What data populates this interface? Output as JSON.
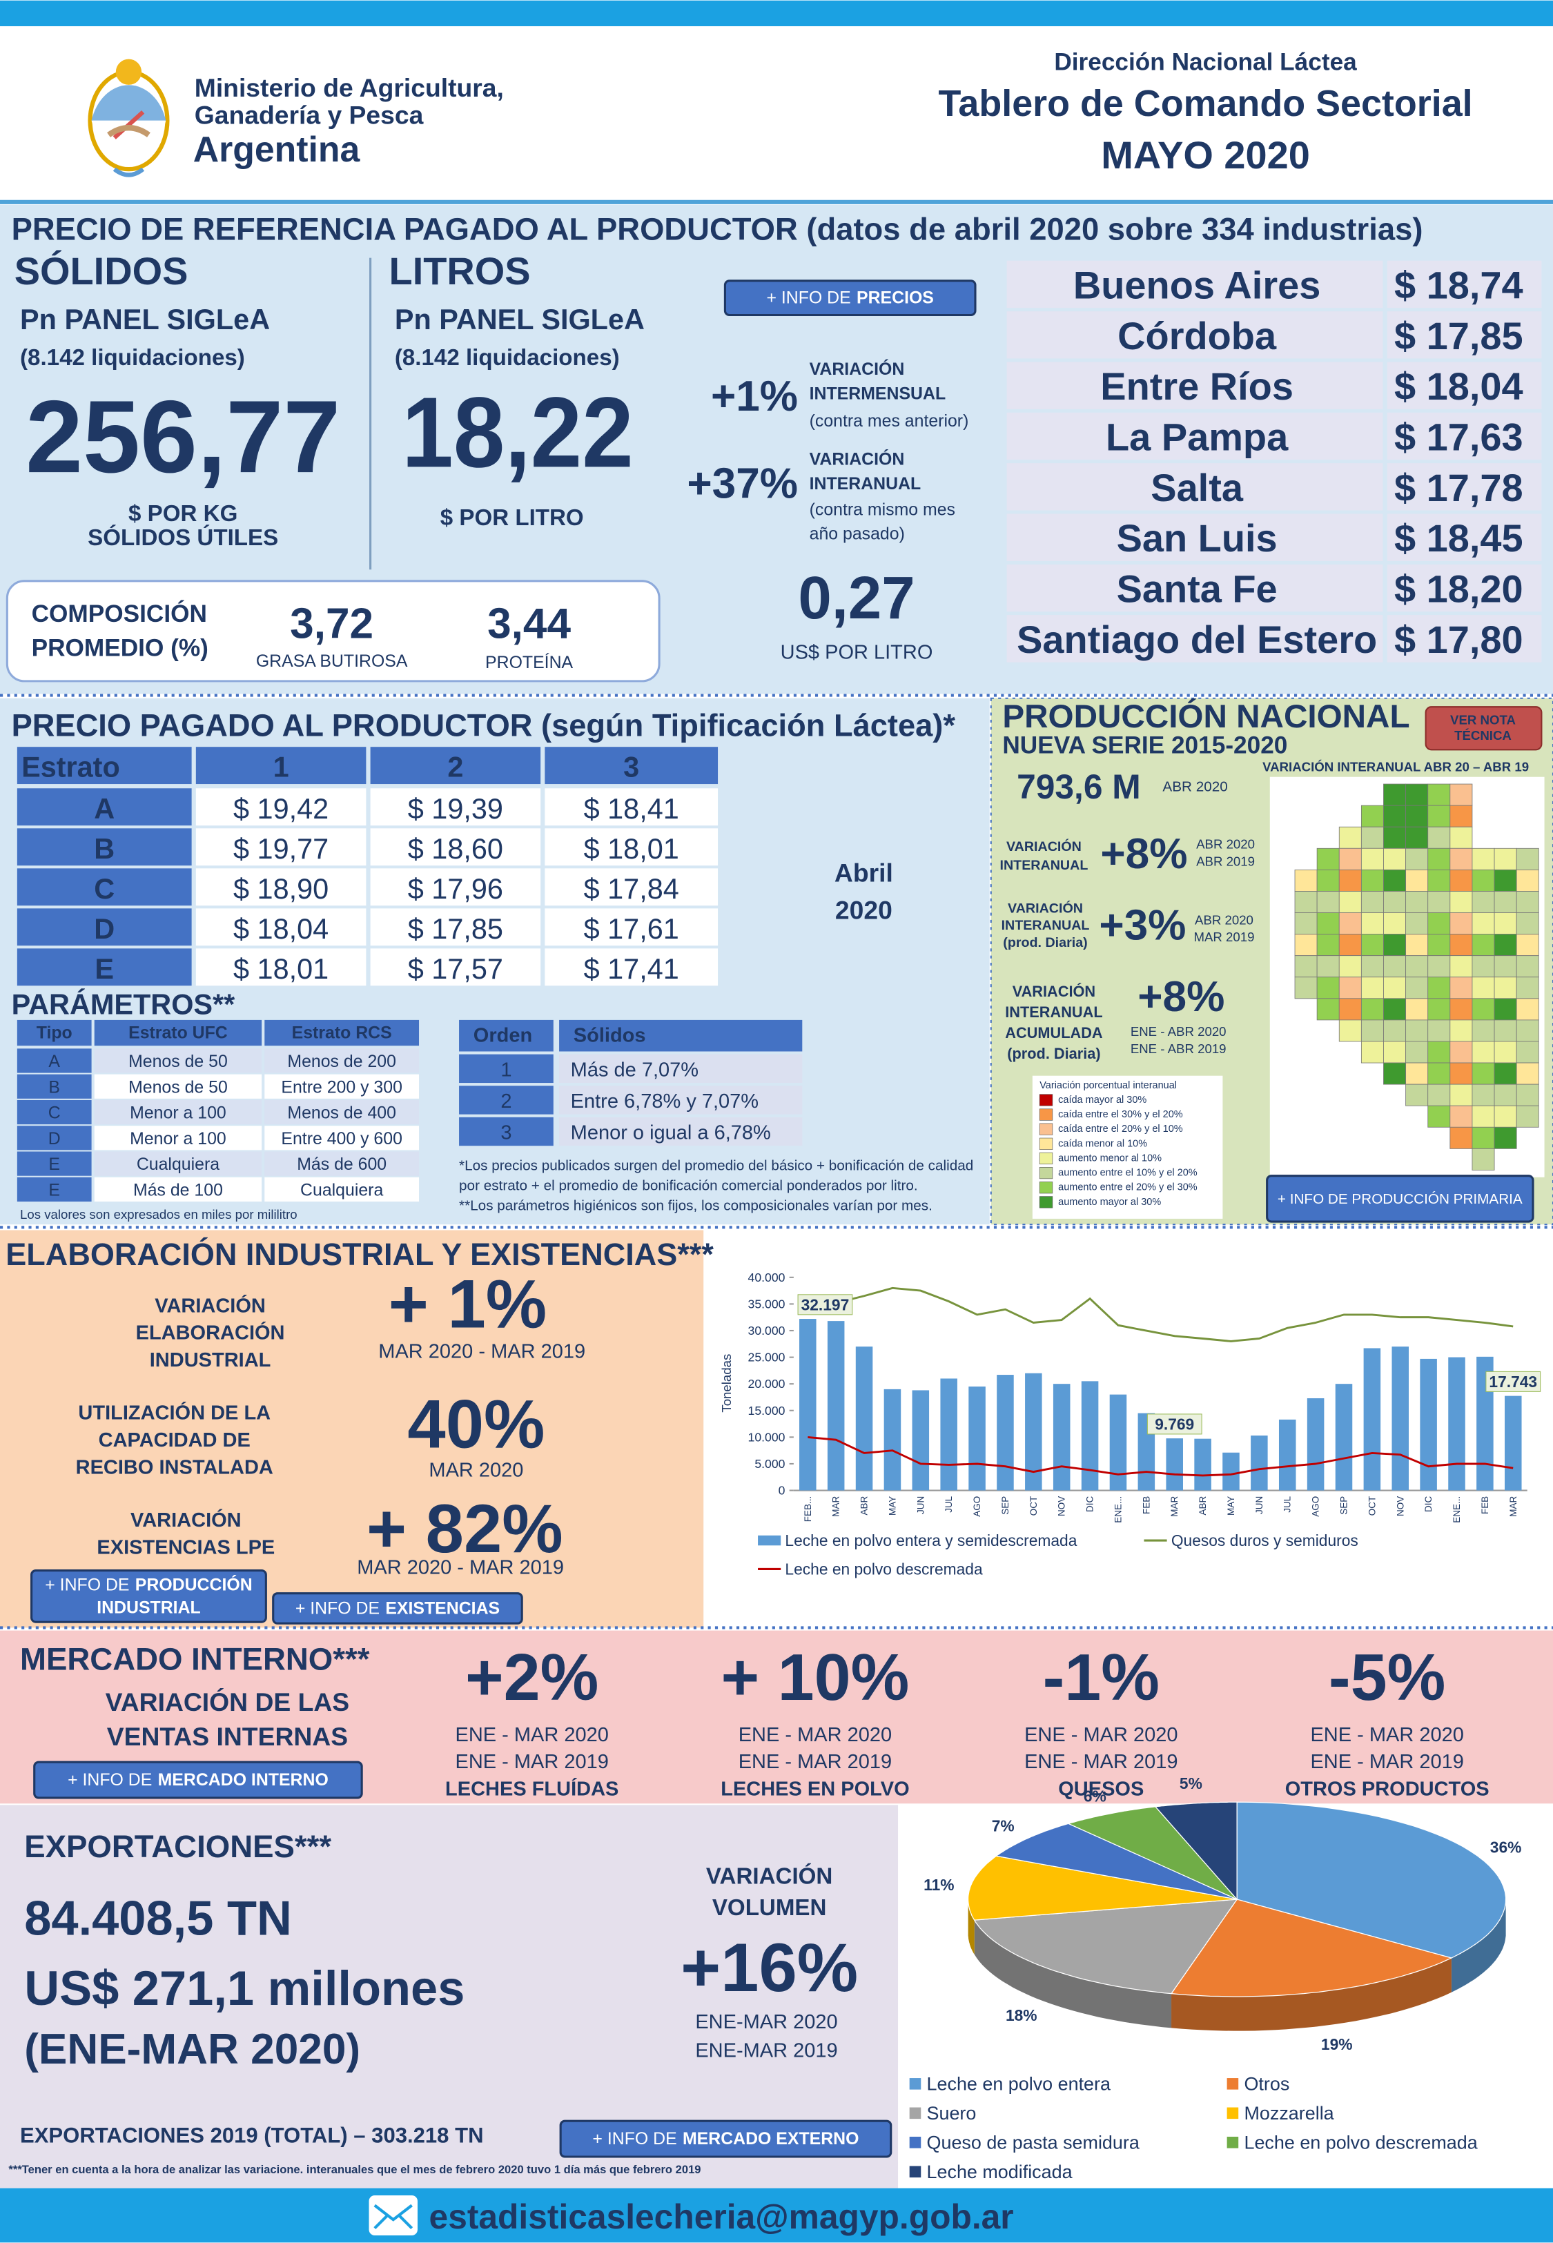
{
  "header": {
    "ministry": [
      "Ministerio de Agricultura,",
      "Ganadería y Pesca"
    ],
    "country": "Argentina",
    "department": "Dirección Nacional Láctea",
    "title": "Tablero de Comando Sectorial",
    "period": "MAYO 2020"
  },
  "reference_price": {
    "title": "PRECIO DE REFERENCIA PAGADO AL PRODUCTOR (datos de abril 2020 sobre 334 industrias)",
    "solids": {
      "heading": "SÓLIDOS",
      "panel": "Pn PANEL SIGLeA",
      "count": "(8.142 liquidaciones)",
      "value": "256,77",
      "unit": [
        "$ POR KG",
        "SÓLIDOS ÚTILES"
      ]
    },
    "liters": {
      "heading": "LITROS",
      "panel": "Pn PANEL SIGLeA",
      "count": "(8.142 liquidaciones)",
      "value": "18,22",
      "unit": [
        "$ POR LITRO"
      ]
    },
    "info_button": {
      "lines": [
        {
          "prefix": "+ INFO DE",
          "emphasis": "PRECIOS"
        }
      ]
    },
    "monthly": {
      "value": "+1%",
      "label": [
        "VARIACIÓN",
        "INTERMENSUAL"
      ],
      "note": [
        "(contra mes anterior)"
      ]
    },
    "yearly": {
      "value": "+37%",
      "label": [
        "VARIACIÓN",
        "INTERANUAL"
      ],
      "note": [
        "(contra mismo mes",
        "año pasado)"
      ]
    },
    "usd": {
      "value": "0,27",
      "unit": "US$ POR LITRO"
    },
    "composition": {
      "label": [
        "COMPOSICIÓN",
        "PROMEDIO (%)"
      ],
      "fat": "3,72",
      "fat_label": "GRASA BUTIROSA",
      "protein": "3,44",
      "protein_label": "PROTEÍNA"
    },
    "provinces": [
      [
        "Buenos Aires",
        "$ 18,74"
      ],
      [
        "Córdoba",
        "$ 17,85"
      ],
      [
        "Entre Ríos",
        "$ 18,04"
      ],
      [
        "La Pampa",
        "$ 17,63"
      ],
      [
        "Salta",
        "$ 17,78"
      ],
      [
        "San Luis",
        "$ 18,45"
      ],
      [
        "Santa Fe",
        "$ 18,20"
      ],
      [
        "Santiago del Estero",
        "$ 17,80"
      ]
    ]
  },
  "price_by_type": {
    "title": "PRECIO PAGADO AL PRODUCTOR (según Tipificación Láctea)*",
    "table": {
      "header": [
        "Estrato",
        "1",
        "2",
        "3"
      ],
      "rows": [
        [
          "A",
          "$ 19,42",
          "$ 19,39",
          "$ 18,41"
        ],
        [
          "B",
          "$ 19,77",
          "$ 18,60",
          "$ 18,01"
        ],
        [
          "C",
          "$ 18,90",
          "$ 17,96",
          "$ 17,84"
        ],
        [
          "D",
          "$ 18,04",
          "$ 17,85",
          "$ 17,61"
        ],
        [
          "E",
          "$ 18,01",
          "$ 17,57",
          "$ 17,41"
        ]
      ]
    },
    "period": [
      "Abril",
      "2020"
    ],
    "parameters_title": "PARÁMETROS**",
    "hygiene": {
      "header": [
        "Tipo",
        "Estrato UFC",
        "Estrato RCS"
      ],
      "rows": [
        [
          "A",
          "Menos de 50",
          "Menos de 200"
        ],
        [
          "B",
          "Menos de 50",
          "Entre 200 y 300"
        ],
        [
          "C",
          "Menor a 100",
          "Menos de 400"
        ],
        [
          "D",
          "Menor a 100",
          "Entre 400 y 600"
        ],
        [
          "E",
          "Cualquiera",
          "Más de 600"
        ],
        [
          "E",
          "Más de 100",
          "Cualquiera"
        ]
      ],
      "note": "Los valores son expresados en miles por mililitro"
    },
    "solids": {
      "header": [
        "Orden",
        "Sólidos"
      ],
      "rows": [
        [
          "1",
          "Más de 7,07%"
        ],
        [
          "2",
          "Entre 6,78% y 7,07%"
        ],
        [
          "3",
          "Menor o igual a 6,78%"
        ]
      ]
    },
    "notes": [
      "*Los precios publicados surgen del promedio del básico + bonificación de calidad",
      "por estrato + el promedio de bonificación comercial ponderados por litro.",
      "**Los parámetros higiénicos son fijos, los composicionales varían por mes."
    ]
  },
  "production": {
    "title": "PRODUCCIÓN NACIONAL",
    "subtitle": "NUEVA SERIE 2015-2020",
    "note_button": [
      "VER NOTA",
      "TÉCNICA"
    ],
    "map_title": "VARIACIÓN INTERANUAL ABR 20 – ABR 19",
    "volume": "793,6 M",
    "volume_period": "ABR 2020",
    "items": [
      {
        "label": [
          "VARIACIÓN",
          "INTERANUAL"
        ],
        "value": "+8%",
        "period": [
          "ABR 2020",
          "ABR 2019"
        ]
      },
      {
        "label": [
          "VARIACIÓN",
          "INTERANUAL",
          "(prod. Diaria)"
        ],
        "value": "+3%",
        "period": [
          "ABR 2020",
          "MAR 2019"
        ]
      },
      {
        "label": [
          "VARIACIÓN",
          "INTERANUAL",
          "ACUMULADA",
          "(prod. Diaria)"
        ],
        "value": "+8%",
        "period": [
          "ENE - ABR 2020",
          "ENE - ABR 2019"
        ]
      }
    ],
    "legend": {
      "title": "Variación porcentual interanual",
      "items": [
        {
          "label": "caída mayor al 30%",
          "color": "#c00000"
        },
        {
          "label": "caída entre el 30% y el 20%",
          "color": "#f79646"
        },
        {
          "label": "caída entre el 20% y el 10%",
          "color": "#fac090"
        },
        {
          "label": "caída menor al 10%",
          "color": "#ffe699"
        },
        {
          "label": "aumento menor al 10%",
          "color": "#eef29a"
        },
        {
          "label": "aumento entre el 10% y el 20%",
          "color": "#c4d79b"
        },
        {
          "label": "aumento entre el 20% y el 30%",
          "color": "#92d050"
        },
        {
          "label": "aumento mayor al 30%",
          "color": "#3f9a2f"
        }
      ]
    },
    "info_button": {
      "lines": [
        {
          "prefix": "+ INFO DE PRODUCCIÓN PRIMARIA"
        }
      ]
    }
  },
  "industrial": {
    "title": "ELABORACIÓN INDUSTRIAL Y EXISTENCIAS***",
    "items": [
      {
        "label": [
          "VARIACIÓN",
          "ELABORACIÓN",
          "INDUSTRIAL"
        ],
        "value": "+ 1%",
        "period": "MAR 2020 -  MAR 2019"
      },
      {
        "label": [
          "UTILIZACIÓN DE LA",
          "CAPACIDAD DE",
          "RECIBO INSTALADA"
        ],
        "value": "40%",
        "period": "MAR 2020"
      },
      {
        "label": [
          "VARIACIÓN",
          "EXISTENCIAS LPE"
        ],
        "value": "+ 82%",
        "period": "MAR 2020 -  MAR 2019"
      }
    ],
    "buttons": [
      {
        "lines": [
          {
            "prefix": "+ INFO DE",
            "emphasis": "PRODUCCIÓN"
          },
          {
            "emphasis": "INDUSTRIAL"
          }
        ]
      },
      {
        "lines": [
          {
            "prefix": "+ INFO DE",
            "emphasis": "EXISTENCIAS"
          }
        ]
      }
    ],
    "chart": {
      "type": "bar",
      "y_label": "Toneladas",
      "ylim": [
        0,
        40000
      ],
      "yticks": [
        {
          "value": 0,
          "label": "0"
        },
        {
          "value": 5000,
          "label": "5.000"
        },
        {
          "value": 10000,
          "label": "10.000"
        },
        {
          "value": 15000,
          "label": "15.000"
        },
        {
          "value": 20000,
          "label": "20.000"
        },
        {
          "value": 25000,
          "label": "25.000"
        },
        {
          "value": 30000,
          "label": "30.000"
        },
        {
          "value": 35000,
          "label": "35.000"
        },
        {
          "value": 40000,
          "label": "40.000"
        }
      ],
      "categories": [
        "FEB...",
        "MAR",
        "ABR",
        "MAY",
        "JUN",
        "JUL",
        "AGO",
        "SEP",
        "OCT",
        "NOV",
        "DIC",
        "ENE...",
        "FEB",
        "MAR",
        "ABR",
        "MAY",
        "JUN",
        "JUL",
        "AGO",
        "SEP",
        "OCT",
        "NOV",
        "DIC",
        "ENE...",
        "FEB",
        "MAR"
      ],
      "series": [
        {
          "name": "Leche en polvo entera y semidescremada",
          "type": "bar",
          "color": "#5b9bd5",
          "values": [
            32197,
            31800,
            27000,
            19000,
            18800,
            21000,
            19500,
            21700,
            22000,
            20000,
            20500,
            18000,
            14500,
            9769,
            9700,
            7100,
            10300,
            13300,
            17300,
            20000,
            26700,
            27000,
            24700,
            25000,
            25100,
            17743
          ],
          "value_labels": [
            "32.197",
            null,
            null,
            null,
            null,
            null,
            null,
            null,
            null,
            null,
            null,
            null,
            null,
            "9.769",
            null,
            null,
            null,
            null,
            null,
            null,
            null,
            null,
            null,
            null,
            null,
            "17.743"
          ]
        },
        {
          "name": "Quesos duros y semiduros",
          "type": "line",
          "color": "#77933c",
          "values": [
            35000,
            35200,
            36500,
            38000,
            37500,
            35500,
            33000,
            34000,
            31500,
            32000,
            36000,
            31000,
            30000,
            29000,
            28500,
            28000,
            28500,
            30500,
            31500,
            33000,
            33000,
            32500,
            32500,
            32000,
            31500,
            30800
          ]
        },
        {
          "name": "Leche en polvo descremada",
          "type": "line",
          "color": "#c00000",
          "values": [
            10000,
            9500,
            7000,
            7500,
            5000,
            4800,
            5000,
            4500,
            3500,
            4500,
            3800,
            3000,
            3500,
            3000,
            2800,
            3000,
            4000,
            4500,
            5000,
            6000,
            7000,
            6700,
            4500,
            5000,
            5000,
            4200
          ]
        }
      ]
    }
  },
  "internal_market": {
    "title": "MERCADO INTERNO***",
    "subtitle": [
      "VARIACIÓN DE LAS",
      "VENTAS INTERNAS"
    ],
    "button": {
      "lines": [
        {
          "prefix": "+ INFO DE",
          "emphasis": "MERCADO INTERNO"
        }
      ]
    },
    "items": [
      {
        "value": "+2%",
        "period": [
          "ENE - MAR 2020",
          "ENE - MAR 2019"
        ],
        "product": "LECHES FLUÍDAS"
      },
      {
        "value": "+ 10%",
        "period": [
          "ENE - MAR 2020",
          "ENE - MAR 2019"
        ],
        "product": "LECHES EN POLVO"
      },
      {
        "value": "-1%",
        "period": [
          "ENE - MAR 2020",
          "ENE - MAR 2019"
        ],
        "product": "QUESOS"
      },
      {
        "value": "-5%",
        "period": [
          "ENE - MAR 2020",
          "ENE - MAR 2019"
        ],
        "product": "OTROS PRODUCTOS"
      }
    ]
  },
  "exports": {
    "title": "EXPORTACIONES***",
    "volume": "84.408,5 TN",
    "amount": "US$ 271,1 millones",
    "period": "(ENE-MAR 2020)",
    "variation_label": [
      "VARIACIÓN",
      "VOLUMEN"
    ],
    "variation": "+16%",
    "variation_period": [
      "ENE-MAR 2020",
      "ENE-MAR 2019"
    ],
    "total": "EXPORTACIONES 2019 (TOTAL) – 303.218 TN",
    "button": {
      "lines": [
        {
          "prefix": "+ INFO DE",
          "emphasis": "MERCADO EXTERNO"
        }
      ]
    },
    "footnote": "***Tener en cuenta a la hora de analizar las variacione. interanuales que el mes de febrero 2020 tuvo 1 día más que febrero 2019",
    "chart": {
      "type": "pie",
      "categories": [
        "Leche en polvo entera",
        "Otros",
        "Suero",
        "Mozzarella",
        "Queso de pasta semidura",
        "Leche en polvo descremada",
        "Leche modificada"
      ],
      "values": [
        36,
        19,
        18,
        11,
        7,
        6,
        5
      ],
      "value_labels": [
        "36%",
        "19%",
        "18%",
        "11%",
        "7%",
        "6%",
        "5%"
      ],
      "colors": [
        "#5b9bd5",
        "#ed7d31",
        "#a5a5a5",
        "#ffc000",
        "#4472c4",
        "#70ad47",
        "#264478"
      ]
    }
  },
  "footer": {
    "email": "estadisticaslecheria@magyp.gob.ar"
  }
}
